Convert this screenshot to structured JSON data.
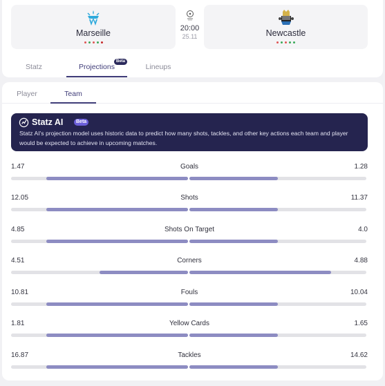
{
  "match": {
    "home": {
      "name": "Marseille",
      "form_colors": [
        "#e05555",
        "#3aaa5a",
        "#e05555",
        "#3aaa5a",
        "#c62a2a"
      ]
    },
    "away": {
      "name": "Newcastle",
      "form_colors": [
        "#e05555",
        "#3aaa5a",
        "#e05555",
        "#3aaa5a",
        "#3aaa5a"
      ]
    },
    "time": "20:00",
    "date": "25.11"
  },
  "tabs": [
    {
      "label": "Statz",
      "active": false
    },
    {
      "label": "Projections",
      "active": true,
      "badge": "Beta"
    },
    {
      "label": "Lineups",
      "active": false
    }
  ],
  "subtabs": [
    {
      "label": "Player",
      "active": false
    },
    {
      "label": "Team",
      "active": true
    }
  ],
  "banner": {
    "title": "Statz AI",
    "badge": "Beta",
    "text": "Statz AI's projection model uses historic data to predict how many shots, tackles, and other key actions each team and player would be expected to achieve in upcoming matches."
  },
  "stats": [
    {
      "label": "Goals",
      "home": "1.47",
      "away": "1.28",
      "home_fraction": 0.8,
      "away_fraction": 0.5
    },
    {
      "label": "Shots",
      "home": "12.05",
      "away": "11.37",
      "home_fraction": 0.8,
      "away_fraction": 0.5
    },
    {
      "label": "Shots On Target",
      "home": "4.85",
      "away": "4.0",
      "home_fraction": 0.8,
      "away_fraction": 0.5
    },
    {
      "label": "Corners",
      "home": "4.51",
      "away": "4.88",
      "home_fraction": 0.5,
      "away_fraction": 0.8
    },
    {
      "label": "Fouls",
      "home": "10.81",
      "away": "10.04",
      "home_fraction": 0.8,
      "away_fraction": 0.5
    },
    {
      "label": "Yellow Cards",
      "home": "1.81",
      "away": "1.65",
      "home_fraction": 0.8,
      "away_fraction": 0.5
    },
    {
      "label": "Tackles",
      "home": "16.87",
      "away": "14.62",
      "home_fraction": 0.8,
      "away_fraction": 0.5
    }
  ],
  "colors": {
    "accent": "#3f3c78",
    "bar_fill": "#8d8cc2",
    "bar_track": "#e2e2e6",
    "banner_bg": "#25244f"
  }
}
